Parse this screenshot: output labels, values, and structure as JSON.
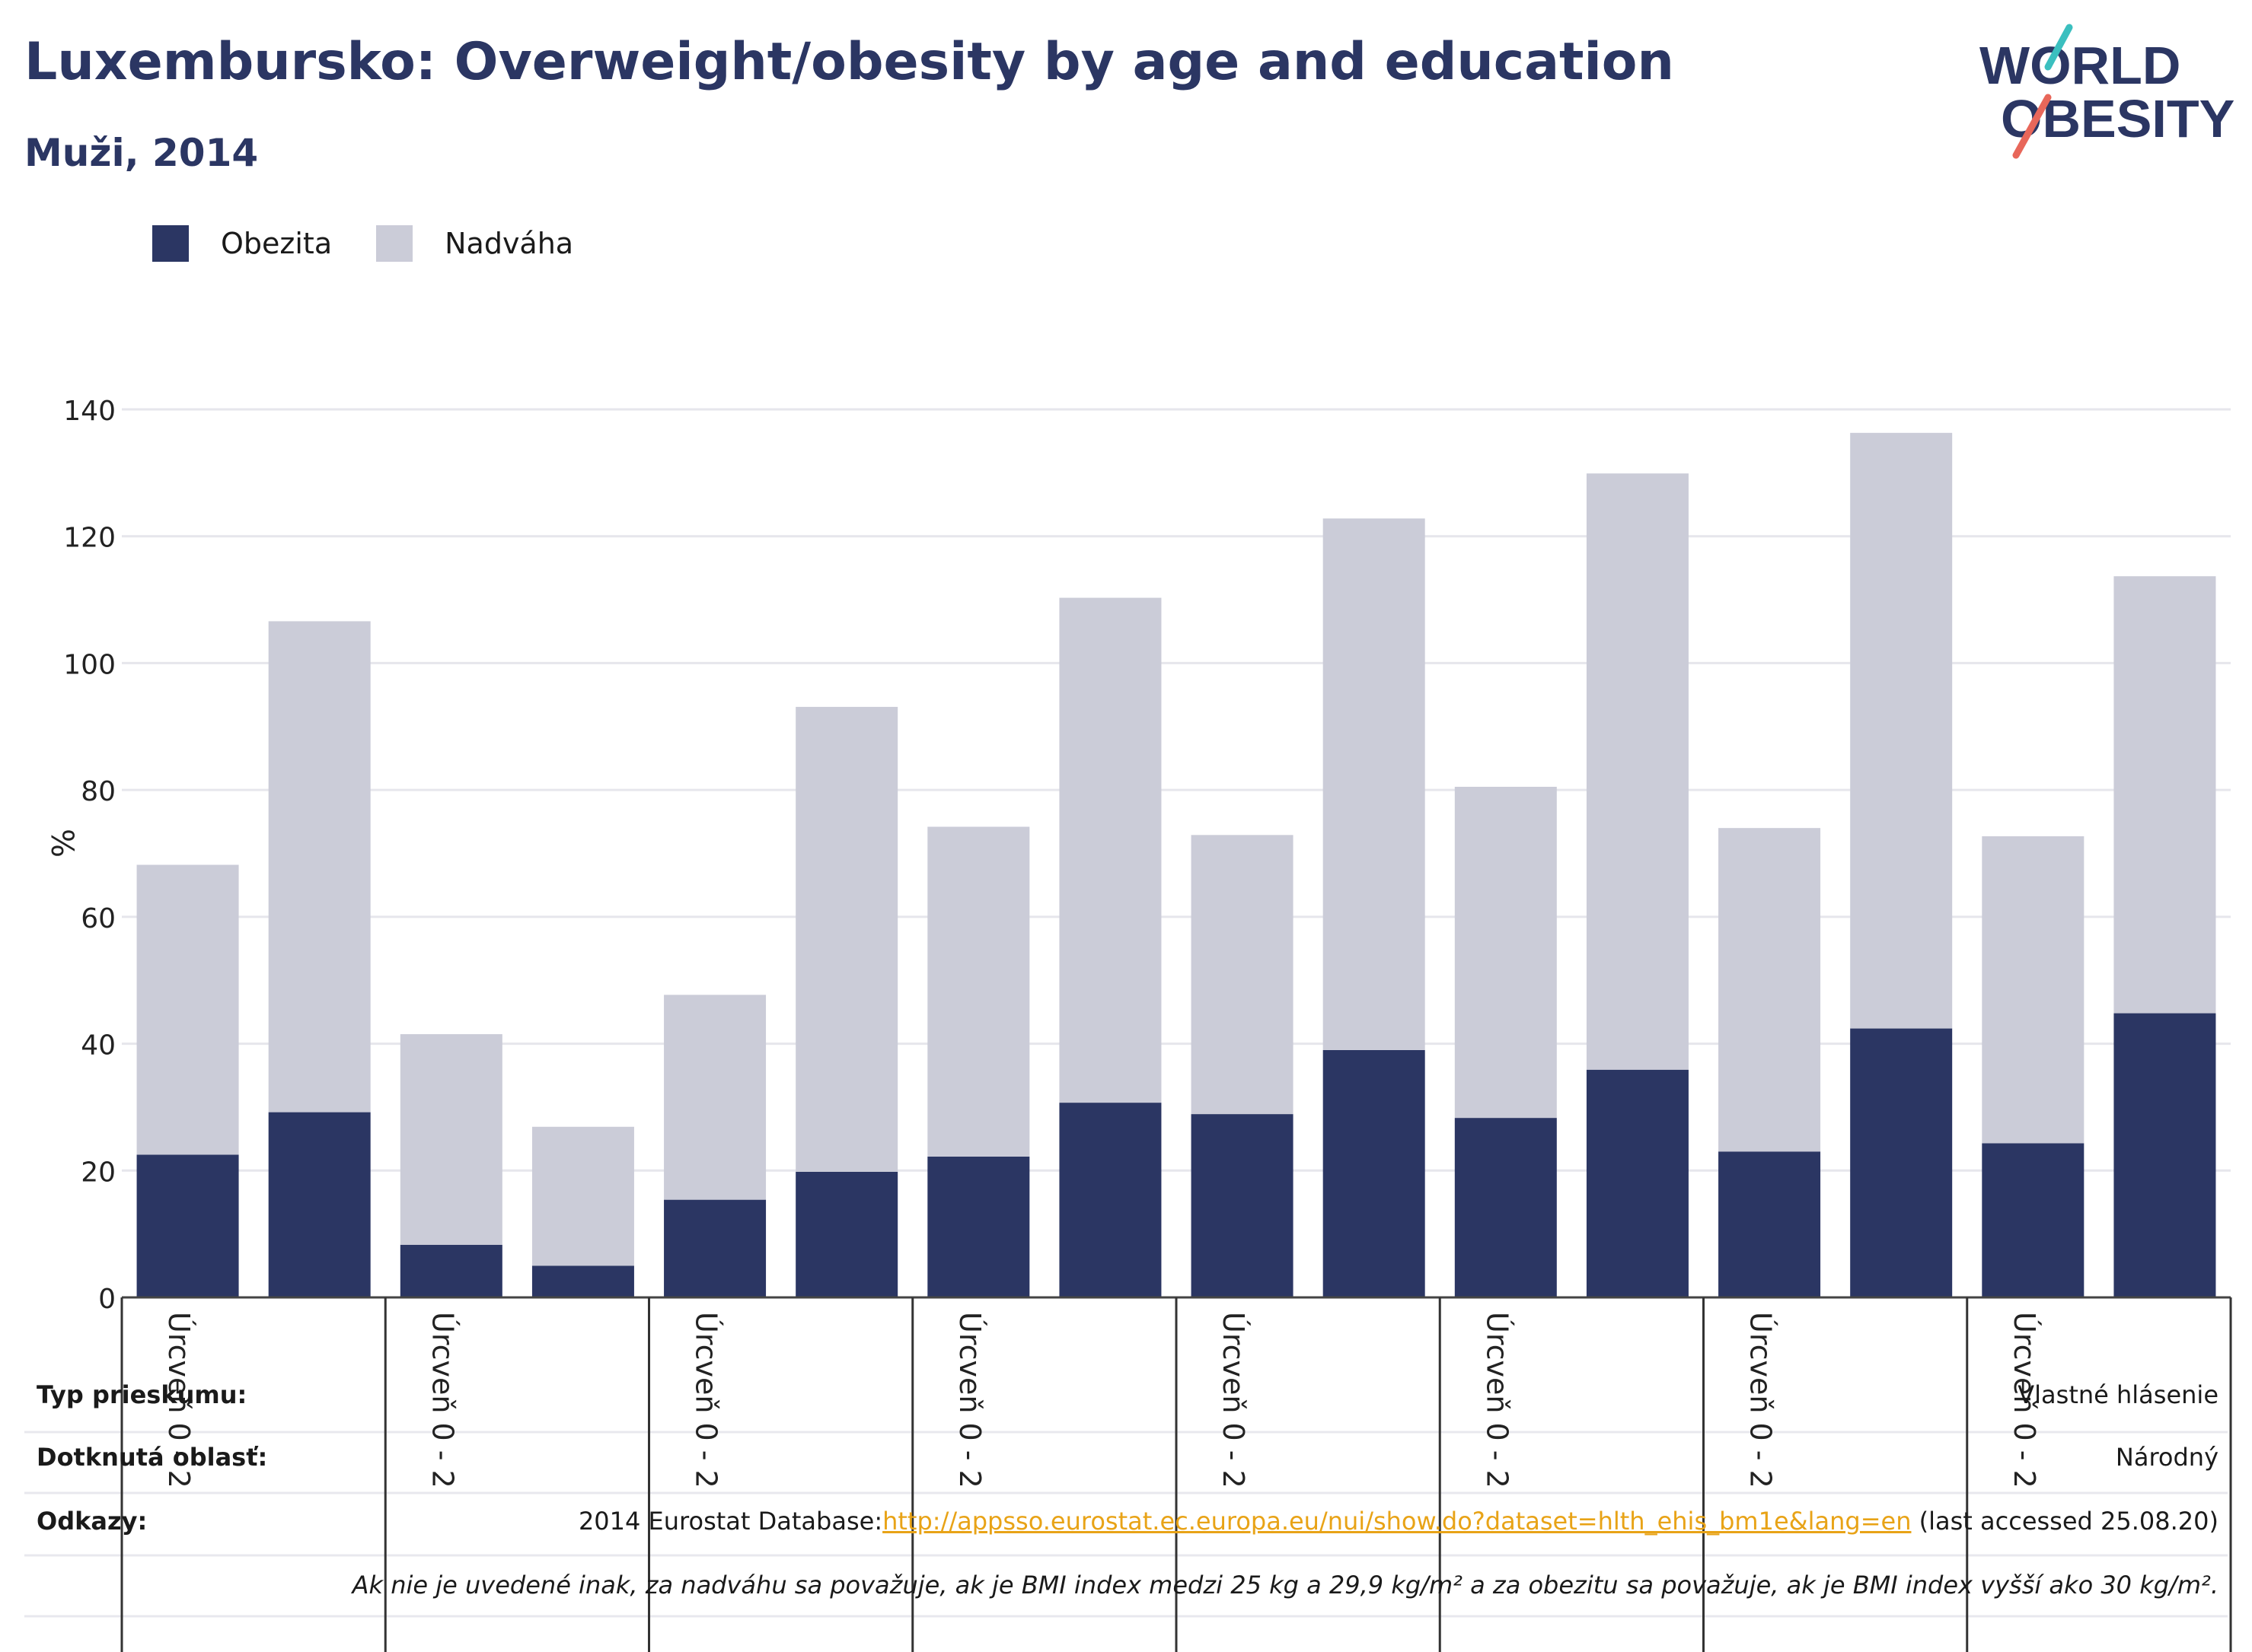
{
  "title": "Luxembursko: Overweight/obesity by age and education",
  "subtitle": "Muži, 2014",
  "logo": {
    "line1": "WORLD",
    "line2": "OBESITY",
    "accent_colors": [
      "#3bbfbf",
      "#e8675a"
    ]
  },
  "legend": [
    {
      "label": "Obezita",
      "color": "#2b3663"
    },
    {
      "label": "Nadváha",
      "color": "#cbccd8"
    }
  ],
  "chart_data": {
    "type": "bar",
    "stacked": true,
    "ylabel": "%",
    "ylim": [
      0,
      140
    ],
    "yticks": [
      0,
      20,
      40,
      60,
      80,
      100,
      120,
      140
    ],
    "grid": true,
    "legend_position": "top-left",
    "group_labels": [
      "Úrcveň 0 - 2",
      "Úrcveň 0 - 2",
      "Úrcveň 0 - 2",
      "Úrcveň 0 - 2",
      "Úrcveň 0 - 2",
      "Úrcveň 0 - 2",
      "Úrcveň 0 - 2",
      "Úrcveň 0 - 2"
    ],
    "series": [
      {
        "name": "Obezita",
        "color": "#2b3663",
        "values": [
          22.5,
          29.2,
          8.3,
          5.0,
          15.4,
          19.8,
          22.2,
          30.7,
          28.9,
          39.0,
          28.3,
          35.9,
          23.0,
          42.4,
          24.3,
          44.8
        ]
      },
      {
        "name": "Nadváha",
        "color": "#cbccd8",
        "values": [
          45.7,
          77.4,
          33.2,
          21.9,
          32.3,
          73.3,
          52.0,
          79.6,
          44.0,
          83.8,
          52.2,
          94.0,
          51.0,
          93.9,
          48.4,
          68.9
        ]
      }
    ]
  },
  "footer": {
    "survey_type_label": "Typ prieskumu:",
    "survey_type_value": "Vlastné hlásenie",
    "area_label": "Dotknutá oblasť:",
    "area_value": "Národný",
    "refs_label": "Odkazy:",
    "refs_prefix": "2014 Eurostat Database:",
    "refs_link": "http://appsso.eurostat.ec.europa.eu/nui/show.do?dataset=hlth_ehis_bm1e&lang=en",
    "refs_suffix": " (last accessed 25.08.20)",
    "note": "Ak nie je uvedené inak, za nadváhu sa považuje, ak je BMI index medzi 25 kg a 29,9 kg/m² a za obezitu sa považuje, ak je BMI index vyšší ako 30 kg/m²."
  }
}
